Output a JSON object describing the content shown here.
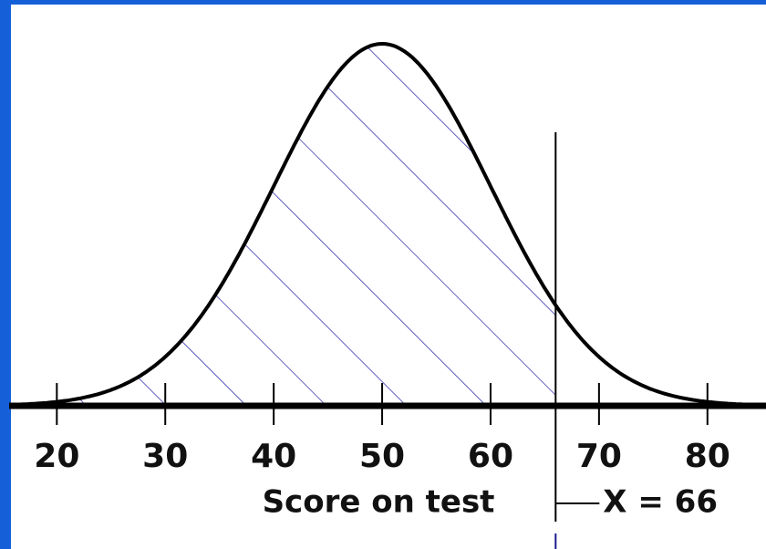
{
  "chart_data": {
    "type": "normal",
    "mean": 50,
    "sd": 10,
    "xlim": [
      15.6,
      85.4
    ],
    "xticks": [
      20,
      30,
      40,
      50,
      60,
      70,
      80
    ],
    "x_label": "Score on test",
    "cutoff": 66,
    "annotation": "X = 66",
    "color": "#1a1a8c"
  }
}
